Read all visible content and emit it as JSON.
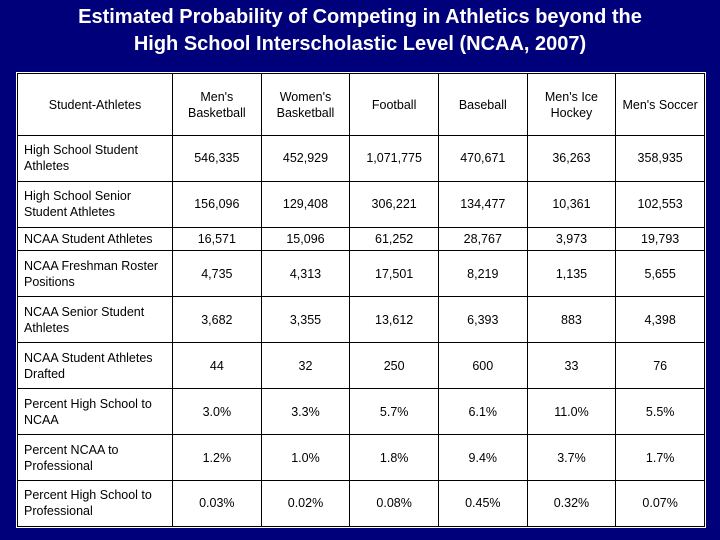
{
  "title": {
    "line1": "Estimated Probability of Competing in Athletics beyond the",
    "line2": "High School Interscholastic Level (NCAA, 2007)"
  },
  "table": {
    "corner": "Student-Athletes",
    "columns": [
      "Men's Basketball",
      "Women's Basketball",
      "Football",
      "Baseball",
      "Men's Ice Hockey",
      "Men's Soccer"
    ],
    "rows": [
      {
        "label": "High School Student Athletes",
        "values": [
          "546,335",
          "452,929",
          "1,071,775",
          "470,671",
          "36,263",
          "358,935"
        ]
      },
      {
        "label": "High School Senior Student Athletes",
        "values": [
          "156,096",
          "129,408",
          "306,221",
          "134,477",
          "10,361",
          "102,553"
        ]
      },
      {
        "label": "NCAA Student Athletes",
        "values": [
          "16,571",
          "15,096",
          "61,252",
          "28,767",
          "3,973",
          "19,793"
        ]
      },
      {
        "label": "NCAA Freshman Roster Positions",
        "values": [
          "4,735",
          "4,313",
          "17,501",
          "8,219",
          "1,135",
          "5,655"
        ]
      },
      {
        "label": "NCAA Senior Student Athletes",
        "values": [
          "3,682",
          "3,355",
          "13,612",
          "6,393",
          "883",
          "4,398"
        ]
      },
      {
        "label": "NCAA Student Athletes Drafted",
        "values": [
          "44",
          "32",
          "250",
          "600",
          "33",
          "76"
        ]
      },
      {
        "label": "Percent High School to NCAA",
        "values": [
          "3.0%",
          "3.3%",
          "5.7%",
          "6.1%",
          "11.0%",
          "5.5%"
        ]
      },
      {
        "label": "Percent NCAA to Professional",
        "values": [
          "1.2%",
          "1.0%",
          "1.8%",
          "9.4%",
          "3.7%",
          "1.7%"
        ]
      },
      {
        "label": "Percent High School to Professional",
        "values": [
          "0.03%",
          "0.02%",
          "0.08%",
          "0.45%",
          "0.32%",
          "0.07%"
        ]
      }
    ]
  },
  "colors": {
    "background": "#00007a",
    "title_text": "#ffffff",
    "table_background": "#ffffff",
    "table_text": "#000000"
  }
}
